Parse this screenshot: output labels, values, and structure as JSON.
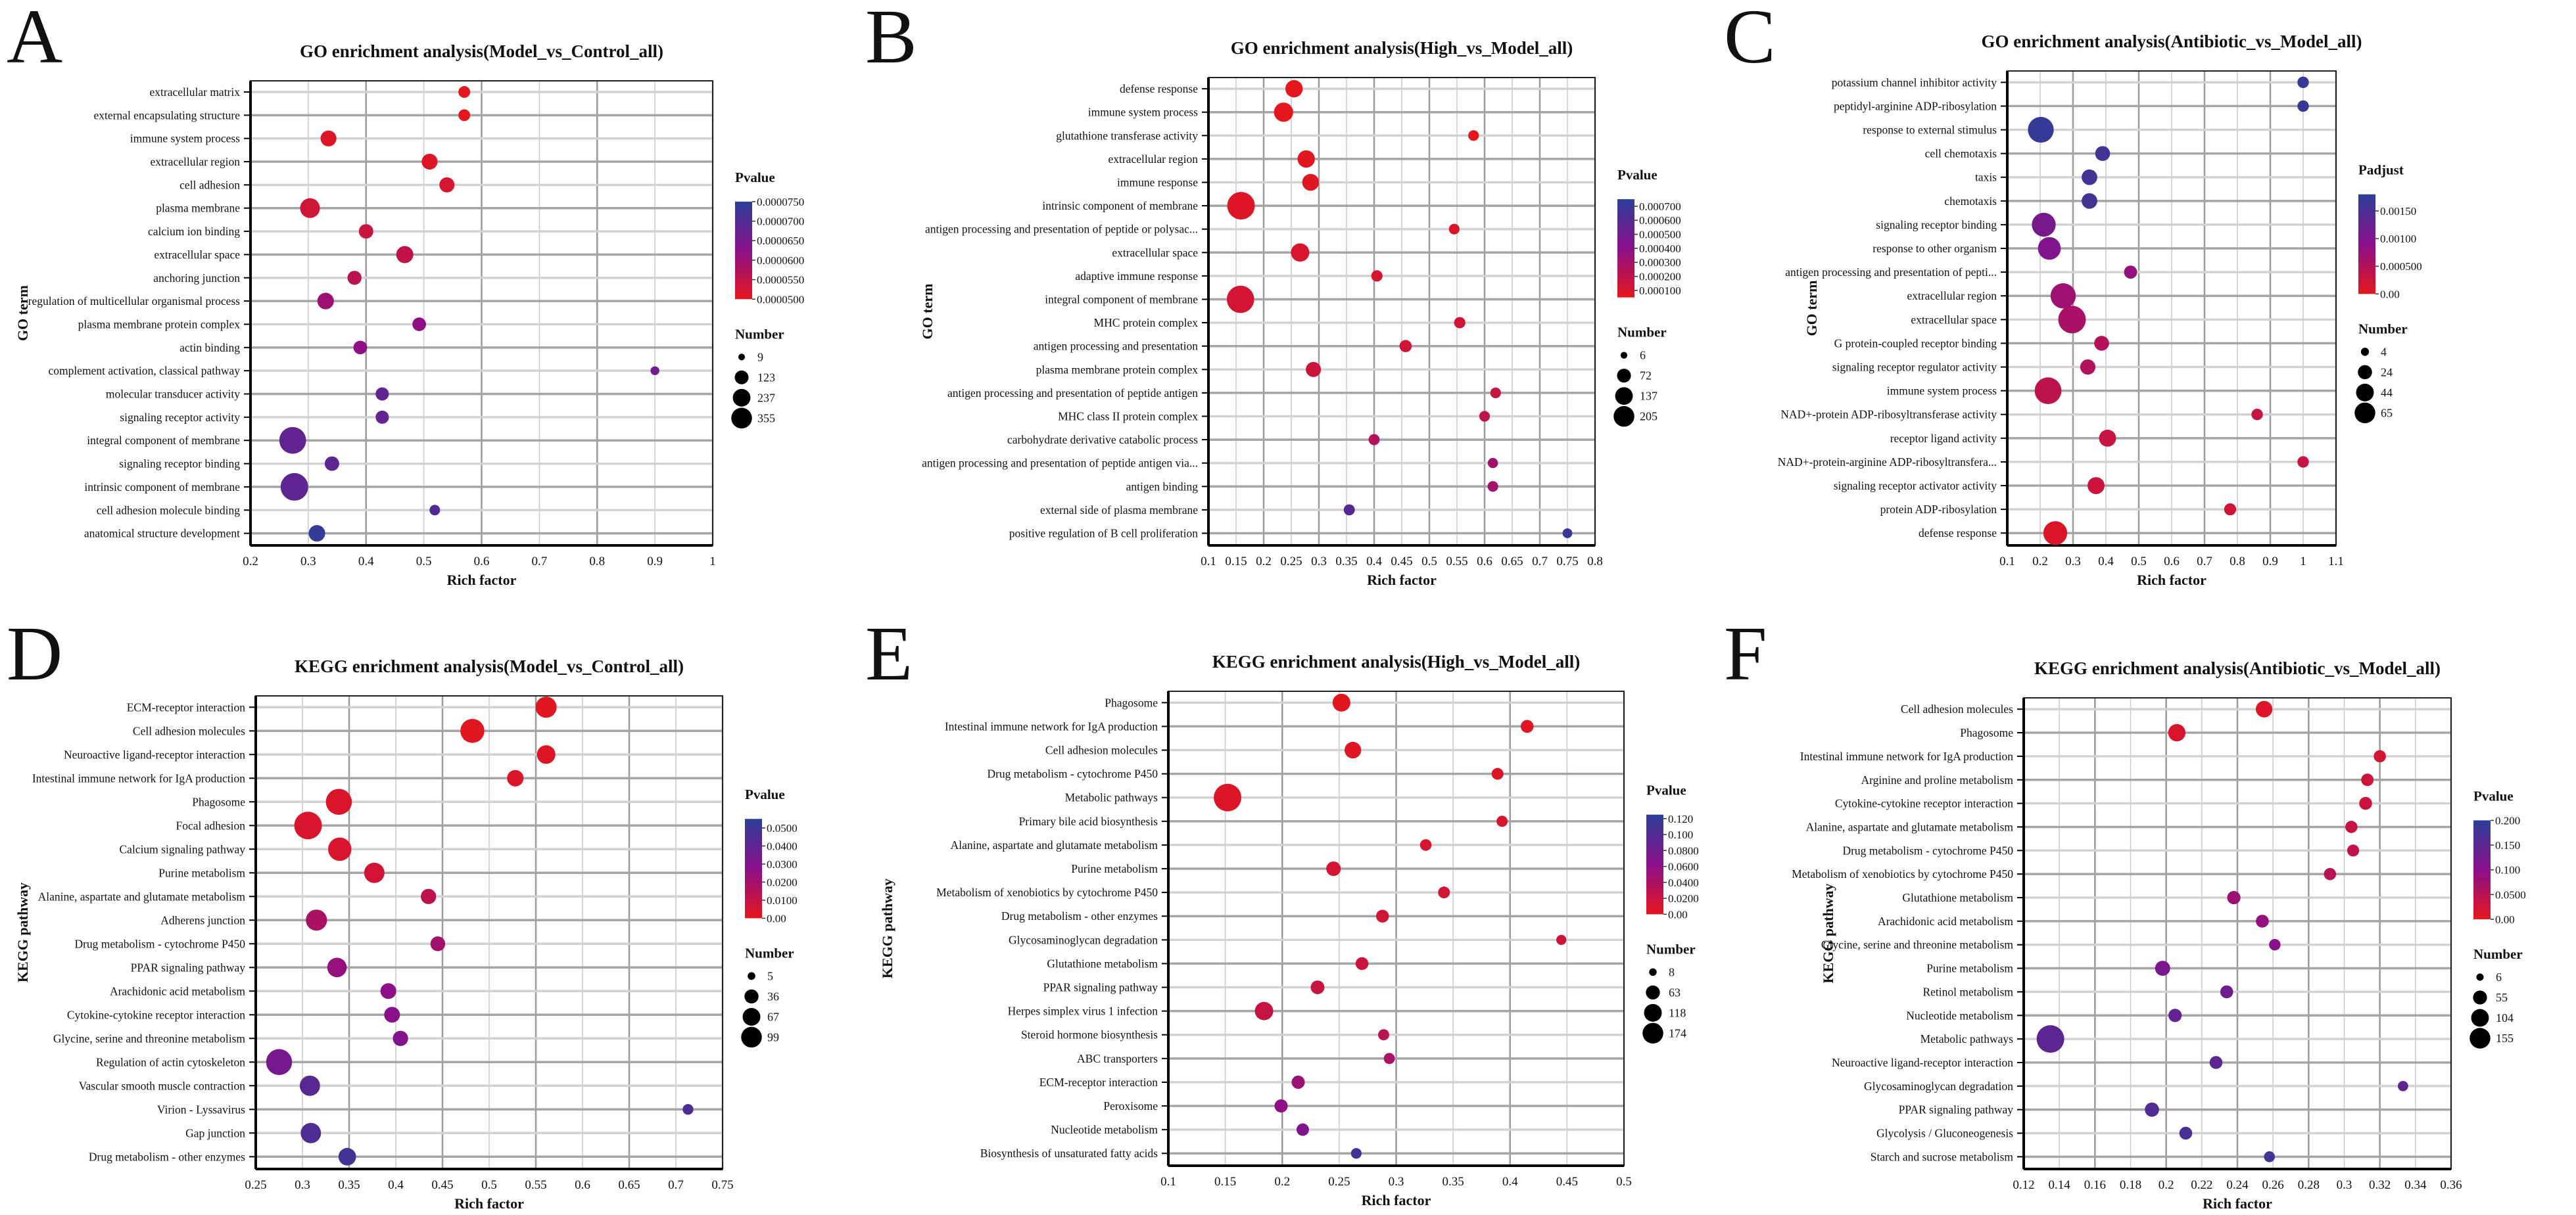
{
  "chart_data": [
    {
      "type": "scatter",
      "panel": "A",
      "title": "GO enrichment analysis(Model_vs_Control_all)",
      "xlabel": "Rich factor",
      "ylabel": "GO term",
      "xlim": [
        0.2,
        1
      ],
      "xticks": [
        "0.2",
        "0.3",
        "0.4",
        "0.5",
        "0.6",
        "0.7",
        "0.8",
        "0.9",
        "1"
      ],
      "color_title": "Pvalue",
      "color_range": [
        5e-05,
        7.5e-05
      ],
      "color_ticks": [
        {
          "v": 7.5e-05,
          "label": "0.0000750"
        },
        {
          "v": 7e-05,
          "label": "0.0000700"
        },
        {
          "v": 6.5e-05,
          "label": "0.0000650"
        },
        {
          "v": 6e-05,
          "label": "0.0000600"
        },
        {
          "v": 5.5e-05,
          "label": "0.0000550"
        },
        {
          "v": 5e-05,
          "label": "0.0000500"
        }
      ],
      "size_title": "Number",
      "size_ticks": [
        9,
        123,
        237,
        355
      ],
      "terms": [
        "extracellular matrix",
        "external encapsulating structure",
        "immune system process",
        "extracellular region",
        "cell adhesion",
        "plasma membrane",
        "calcium ion binding",
        "extracellular space",
        "anchoring junction",
        "regulation of multicellular organismal process",
        "plasma membrane protein complex",
        "actin binding",
        "complement activation, classical pathway",
        "molecular transducer activity",
        "signaling receptor activity",
        "integral component of membrane",
        "signaling receptor binding",
        "intrinsic component of membrane",
        "cell adhesion molecule binding",
        "anatomical structure development"
      ],
      "rich": [
        0.57,
        0.57,
        0.335,
        0.51,
        0.54,
        0.303,
        0.4,
        0.467,
        0.38,
        0.33,
        0.492,
        0.39,
        0.9,
        0.428,
        0.428,
        0.273,
        0.341,
        0.276,
        0.519,
        0.315
      ],
      "p": [
        5e-05,
        5e-05,
        5.1e-05,
        5.1e-05,
        5.2e-05,
        5.3e-05,
        5.4e-05,
        5.5e-05,
        5.6e-05,
        6e-05,
        6.2e-05,
        6.2e-05,
        6.6e-05,
        6.8e-05,
        6.8e-05,
        6.8e-05,
        6.85e-05,
        6.85e-05,
        7e-05,
        7.4e-05
      ],
      "number": [
        30,
        30,
        80,
        80,
        70,
        150,
        60,
        100,
        55,
        90,
        50,
        50,
        9,
        45,
        45,
        330,
        60,
        355,
        20,
        90
      ]
    },
    {
      "type": "scatter",
      "panel": "B",
      "title": "GO enrichment analysis(High_vs_Model_all)",
      "xlabel": "Rich factor",
      "ylabel": "GO term",
      "xlim": [
        0.1,
        0.8
      ],
      "xticks": [
        "0.1",
        "0.15",
        "0.2",
        "0.25",
        "0.3",
        "0.35",
        "0.4",
        "0.45",
        "0.5",
        "0.55",
        "0.6",
        "0.65",
        "0.7",
        "0.75",
        "0.8"
      ],
      "color_title": "Pvalue",
      "color_range": [
        5e-05,
        0.00075
      ],
      "color_ticks": [
        {
          "v": 0.0007,
          "label": "0.000700"
        },
        {
          "v": 0.0006,
          "label": "0.000600"
        },
        {
          "v": 0.0005,
          "label": "0.000500"
        },
        {
          "v": 0.0004,
          "label": "0.000400"
        },
        {
          "v": 0.0003,
          "label": "0.000300"
        },
        {
          "v": 0.0002,
          "label": "0.000200"
        },
        {
          "v": 0.0001,
          "label": "0.000100"
        }
      ],
      "size_title": "Number",
      "size_ticks": [
        6,
        72,
        137,
        205
      ],
      "terms": [
        "defense response",
        "immune system process",
        "glutathione transferase activity",
        "extracellular region",
        "immune response",
        "intrinsic component of membrane",
        "antigen processing and presentation of peptide or polysac...",
        "extracellular space",
        "adaptive immune response",
        "integral component of membrane",
        "MHC protein complex",
        "antigen processing and presentation",
        "plasma membrane protein complex",
        "antigen processing and presentation of peptide antigen",
        "MHC class II protein complex",
        "carbohydrate derivative catabolic process",
        "antigen processing and presentation of peptide antigen via...",
        "antigen binding",
        "external side of plasma membrane",
        "positive regulation of B cell proliferation"
      ],
      "rich": [
        0.255,
        0.236,
        0.58,
        0.277,
        0.285,
        0.159,
        0.545,
        0.266,
        0.405,
        0.158,
        0.555,
        0.457,
        0.29,
        0.62,
        0.6,
        0.4,
        0.615,
        0.615,
        0.355,
        0.75
      ],
      "p": [
        5e-05,
        5e-05,
        5e-05,
        6e-05,
        7e-05,
        8e-05,
        9e-05,
        0.0001,
        0.00011,
        0.00012,
        0.00013,
        0.00014,
        0.00015,
        0.00017,
        0.0002,
        0.00025,
        0.0003,
        0.0003,
        0.0006,
        0.0007
      ],
      "number": [
        60,
        80,
        12,
        60,
        55,
        205,
        12,
        70,
        15,
        200,
        15,
        20,
        40,
        12,
        12,
        14,
        10,
        12,
        14,
        8
      ]
    },
    {
      "type": "scatter",
      "panel": "C",
      "title": "GO enrichment analysis(Antibiotic_vs_Model_all)",
      "xlabel": "Rich factor",
      "ylabel": "GO term",
      "xlim": [
        0.1,
        1.1
      ],
      "xticks": [
        "0.1",
        "0.2",
        "0.3",
        "0.4",
        "0.5",
        "0.6",
        "0.7",
        "0.8",
        "0.9",
        "1",
        "1.1"
      ],
      "color_title": "Padjust",
      "color_range": [
        0,
        0.0018
      ],
      "color_ticks": [
        {
          "v": 0.0015,
          "label": "0.00150"
        },
        {
          "v": 0.001,
          "label": "0.00100"
        },
        {
          "v": 0.0005,
          "label": "0.000500"
        },
        {
          "v": 0,
          "label": "0.00"
        }
      ],
      "size_title": "Number",
      "size_ticks": [
        4,
        24,
        44,
        65
      ],
      "terms": [
        "potassium channel inhibitor activity",
        "peptidyl-arginine ADP-ribosylation",
        "response to external stimulus",
        "cell chemotaxis",
        "taxis",
        "chemotaxis",
        "signaling receptor binding",
        "response to other organism",
        "antigen processing and presentation of pepti...",
        "extracellular region",
        "extracellular space",
        "G protein-coupled receptor binding",
        "signaling receptor regulator activity",
        "immune system process",
        "NAD+-protein ADP-ribosyltransferase activity",
        "receptor ligand activity",
        "NAD+-protein-arginine ADP-ribosyltransfera...",
        "signaling receptor activator activity",
        "protein ADP-ribosylation",
        "defense response"
      ],
      "rich": [
        1.0,
        1.0,
        0.202,
        0.39,
        0.35,
        0.35,
        0.211,
        0.228,
        0.475,
        0.27,
        0.297,
        0.387,
        0.345,
        0.224,
        0.86,
        0.405,
        1.0,
        0.37,
        0.778,
        0.246
      ],
      "p": [
        0.0017,
        0.0017,
        0.0017,
        0.0016,
        0.0016,
        0.0016,
        0.0011,
        0.001,
        0.0008,
        0.0007,
        0.0006,
        0.0005,
        0.0005,
        0.0004,
        0.0003,
        0.0003,
        0.0003,
        0.00025,
        0.0002,
        0.0001
      ],
      "number": [
        5,
        5,
        55,
        12,
        14,
        14,
        45,
        40,
        8,
        52,
        65,
        12,
        13,
        60,
        5,
        18,
        5,
        18,
        6,
        45
      ]
    },
    {
      "type": "scatter",
      "panel": "D",
      "title": "KEGG enrichment analysis(Model_vs_Control_all)",
      "xlabel": "Rich factor",
      "ylabel": "KEGG pathway",
      "xlim": [
        0.25,
        0.75
      ],
      "xticks": [
        "0.25",
        "0.3",
        "0.35",
        "0.4",
        "0.45",
        "0.5",
        "0.55",
        "0.6",
        "0.65",
        "0.7",
        "0.75"
      ],
      "color_title": "Pvalue",
      "color_range": [
        0,
        0.055
      ],
      "color_ticks": [
        {
          "v": 0.05,
          "label": "0.0500"
        },
        {
          "v": 0.04,
          "label": "0.0400"
        },
        {
          "v": 0.03,
          "label": "0.0300"
        },
        {
          "v": 0.02,
          "label": "0.0200"
        },
        {
          "v": 0.01,
          "label": "0.0100"
        },
        {
          "v": 0,
          "label": "0.00"
        }
      ],
      "size_title": "Number",
      "size_ticks": [
        5,
        36,
        67,
        99
      ],
      "terms": [
        "ECM-receptor interaction",
        "Cell adhesion molecules",
        "Neuroactive ligand-receptor interaction",
        "Intestinal immune network for IgA production",
        "Phagosome",
        "Focal adhesion",
        "Calcium signaling pathway",
        "Purine metabolism",
        "Alanine, aspartate and glutamate metabolism",
        "Adherens junction",
        "Drug metabolism - cytochrome P450",
        "PPAR signaling pathway",
        "Arachidonic acid metabolism",
        "Cytokine-cytokine receptor interaction",
        "Glycine, serine and threonine metabolism",
        "Regulation of actin cytoskeleton",
        "Vascular smooth muscle contraction",
        "Virion - Lyssavirus",
        "Gap junction",
        "Drug metabolism - other enzymes"
      ],
      "rich": [
        0.561,
        0.482,
        0.561,
        0.528,
        0.339,
        0.306,
        0.34,
        0.377,
        0.435,
        0.315,
        0.445,
        0.337,
        0.392,
        0.396,
        0.405,
        0.275,
        0.308,
        0.713,
        0.309,
        0.348
      ],
      "p": [
        0.001,
        0.001,
        0.002,
        0.003,
        0.003,
        0.004,
        0.004,
        0.006,
        0.012,
        0.018,
        0.02,
        0.024,
        0.027,
        0.028,
        0.03,
        0.033,
        0.042,
        0.045,
        0.045,
        0.048
      ],
      "number": [
        50,
        70,
        35,
        25,
        85,
        99,
        65,
        45,
        20,
        50,
        18,
        40,
        22,
        22,
        20,
        85,
        45,
        6,
        45,
        30
      ]
    },
    {
      "type": "scatter",
      "panel": "E",
      "title": "KEGG enrichment analysis(High_vs_Model_all)",
      "xlabel": "Rich factor",
      "ylabel": "KEGG pathway",
      "xlim": [
        0.1,
        0.5
      ],
      "xticks": [
        "0.1",
        "0.15",
        "0.2",
        "0.25",
        "0.3",
        "0.35",
        "0.4",
        "0.45",
        "0.5"
      ],
      "color_title": "Pvalue",
      "color_range": [
        0,
        0.125
      ],
      "color_ticks": [
        {
          "v": 0.12,
          "label": "0.120"
        },
        {
          "v": 0.1,
          "label": "0.100"
        },
        {
          "v": 0.08,
          "label": "0.0800"
        },
        {
          "v": 0.06,
          "label": "0.0600"
        },
        {
          "v": 0.04,
          "label": "0.0400"
        },
        {
          "v": 0.02,
          "label": "0.0200"
        },
        {
          "v": 0,
          "label": "0.00"
        }
      ],
      "size_title": "Number",
      "size_ticks": [
        8,
        63,
        118,
        174
      ],
      "terms": [
        "Phagosome",
        "Intestinal immune network for IgA production",
        "Cell adhesion molecules",
        "Drug metabolism - cytochrome P450",
        "Metabolic pathways",
        "Primary bile acid biosynthesis",
        "Alanine, aspartate and glutamate metabolism",
        "Purine metabolism",
        "Metabolism of xenobiotics by cytochrome P450",
        "Drug metabolism - other enzymes",
        "Glycosaminoglycan degradation",
        "Glutathione metabolism",
        "PPAR signaling pathway",
        "Herpes simplex virus 1 infection",
        "Steroid hormone biosynthesis",
        "ABC transporters",
        "ECM-receptor interaction",
        "Peroxisome",
        "Nucleotide metabolism",
        "Biosynthesis of unsaturated fatty acids"
      ],
      "rich": [
        0.252,
        0.415,
        0.262,
        0.389,
        0.152,
        0.393,
        0.326,
        0.245,
        0.342,
        0.288,
        0.445,
        0.27,
        0.231,
        0.184,
        0.289,
        0.294,
        0.214,
        0.199,
        0.218,
        0.265
      ],
      "p": [
        0.002,
        0.003,
        0.004,
        0.006,
        0.006,
        0.008,
        0.01,
        0.012,
        0.013,
        0.015,
        0.016,
        0.018,
        0.02,
        0.022,
        0.03,
        0.04,
        0.05,
        0.06,
        0.07,
        0.11
      ],
      "number": [
        55,
        20,
        45,
        15,
        174,
        12,
        14,
        30,
        15,
        20,
        8,
        20,
        25,
        60,
        12,
        12,
        22,
        22,
        18,
        10
      ]
    },
    {
      "type": "scatter",
      "panel": "F",
      "title": "KEGG enrichment analysis(Antibiotic_vs_Model_all)",
      "xlabel": "Rich factor",
      "ylabel": "KEGG pathway",
      "xlim": [
        0.12,
        0.36
      ],
      "xticks": [
        "0.12",
        "0.14",
        "0.16",
        "0.18",
        "0.2",
        "0.22",
        "0.24",
        "0.26",
        "0.28",
        "0.3",
        "0.32",
        "0.34",
        "0.36"
      ],
      "color_title": "Pvalue",
      "color_range": [
        0,
        0.2
      ],
      "color_ticks": [
        {
          "v": 0.2,
          "label": "0.200"
        },
        {
          "v": 0.15,
          "label": "0.150"
        },
        {
          "v": 0.1,
          "label": "0.100"
        },
        {
          "v": 0.05,
          "label": "0.0500"
        },
        {
          "v": 0,
          "label": "0.00"
        }
      ],
      "size_title": "Number",
      "size_ticks": [
        6,
        55,
        104,
        155
      ],
      "terms": [
        "Cell adhesion molecules",
        "Phagosome",
        "Intestinal immune network for IgA production",
        "Arginine and proline metabolism",
        "Cytokine-cytokine receptor interaction",
        "Alanine, aspartate and glutamate metabolism",
        "Drug metabolism - cytochrome P450",
        "Metabolism of xenobiotics by cytochrome P450",
        "Glutathione metabolism",
        "Arachidonic acid metabolism",
        "Glycine, serine and threonine metabolism",
        "Purine metabolism",
        "Retinol metabolism",
        "Nucleotide metabolism",
        "Metabolic pathways",
        "Neuroactive ligand-receptor interaction",
        "Glycosaminoglycan degradation",
        "PPAR signaling pathway",
        "Glycolysis / Gluconeogenesis",
        "Starch and sucrose metabolism"
      ],
      "rich": [
        0.255,
        0.206,
        0.32,
        0.313,
        0.312,
        0.304,
        0.305,
        0.292,
        0.238,
        0.254,
        0.261,
        0.198,
        0.234,
        0.205,
        0.135,
        0.228,
        0.333,
        0.192,
        0.211,
        0.258
      ],
      "p": [
        0.01,
        0.015,
        0.02,
        0.025,
        0.03,
        0.035,
        0.04,
        0.05,
        0.08,
        0.09,
        0.1,
        0.12,
        0.13,
        0.14,
        0.15,
        0.15,
        0.15,
        0.16,
        0.17,
        0.18
      ],
      "number": [
        40,
        45,
        15,
        16,
        18,
        15,
        14,
        15,
        20,
        18,
        12,
        30,
        18,
        20,
        155,
        18,
        8,
        25,
        18,
        10
      ]
    }
  ],
  "colors": {
    "low": "#e5161d",
    "mid": "#8a0f8a",
    "high": "#2c3e98",
    "grid": "#b8b8b8"
  }
}
